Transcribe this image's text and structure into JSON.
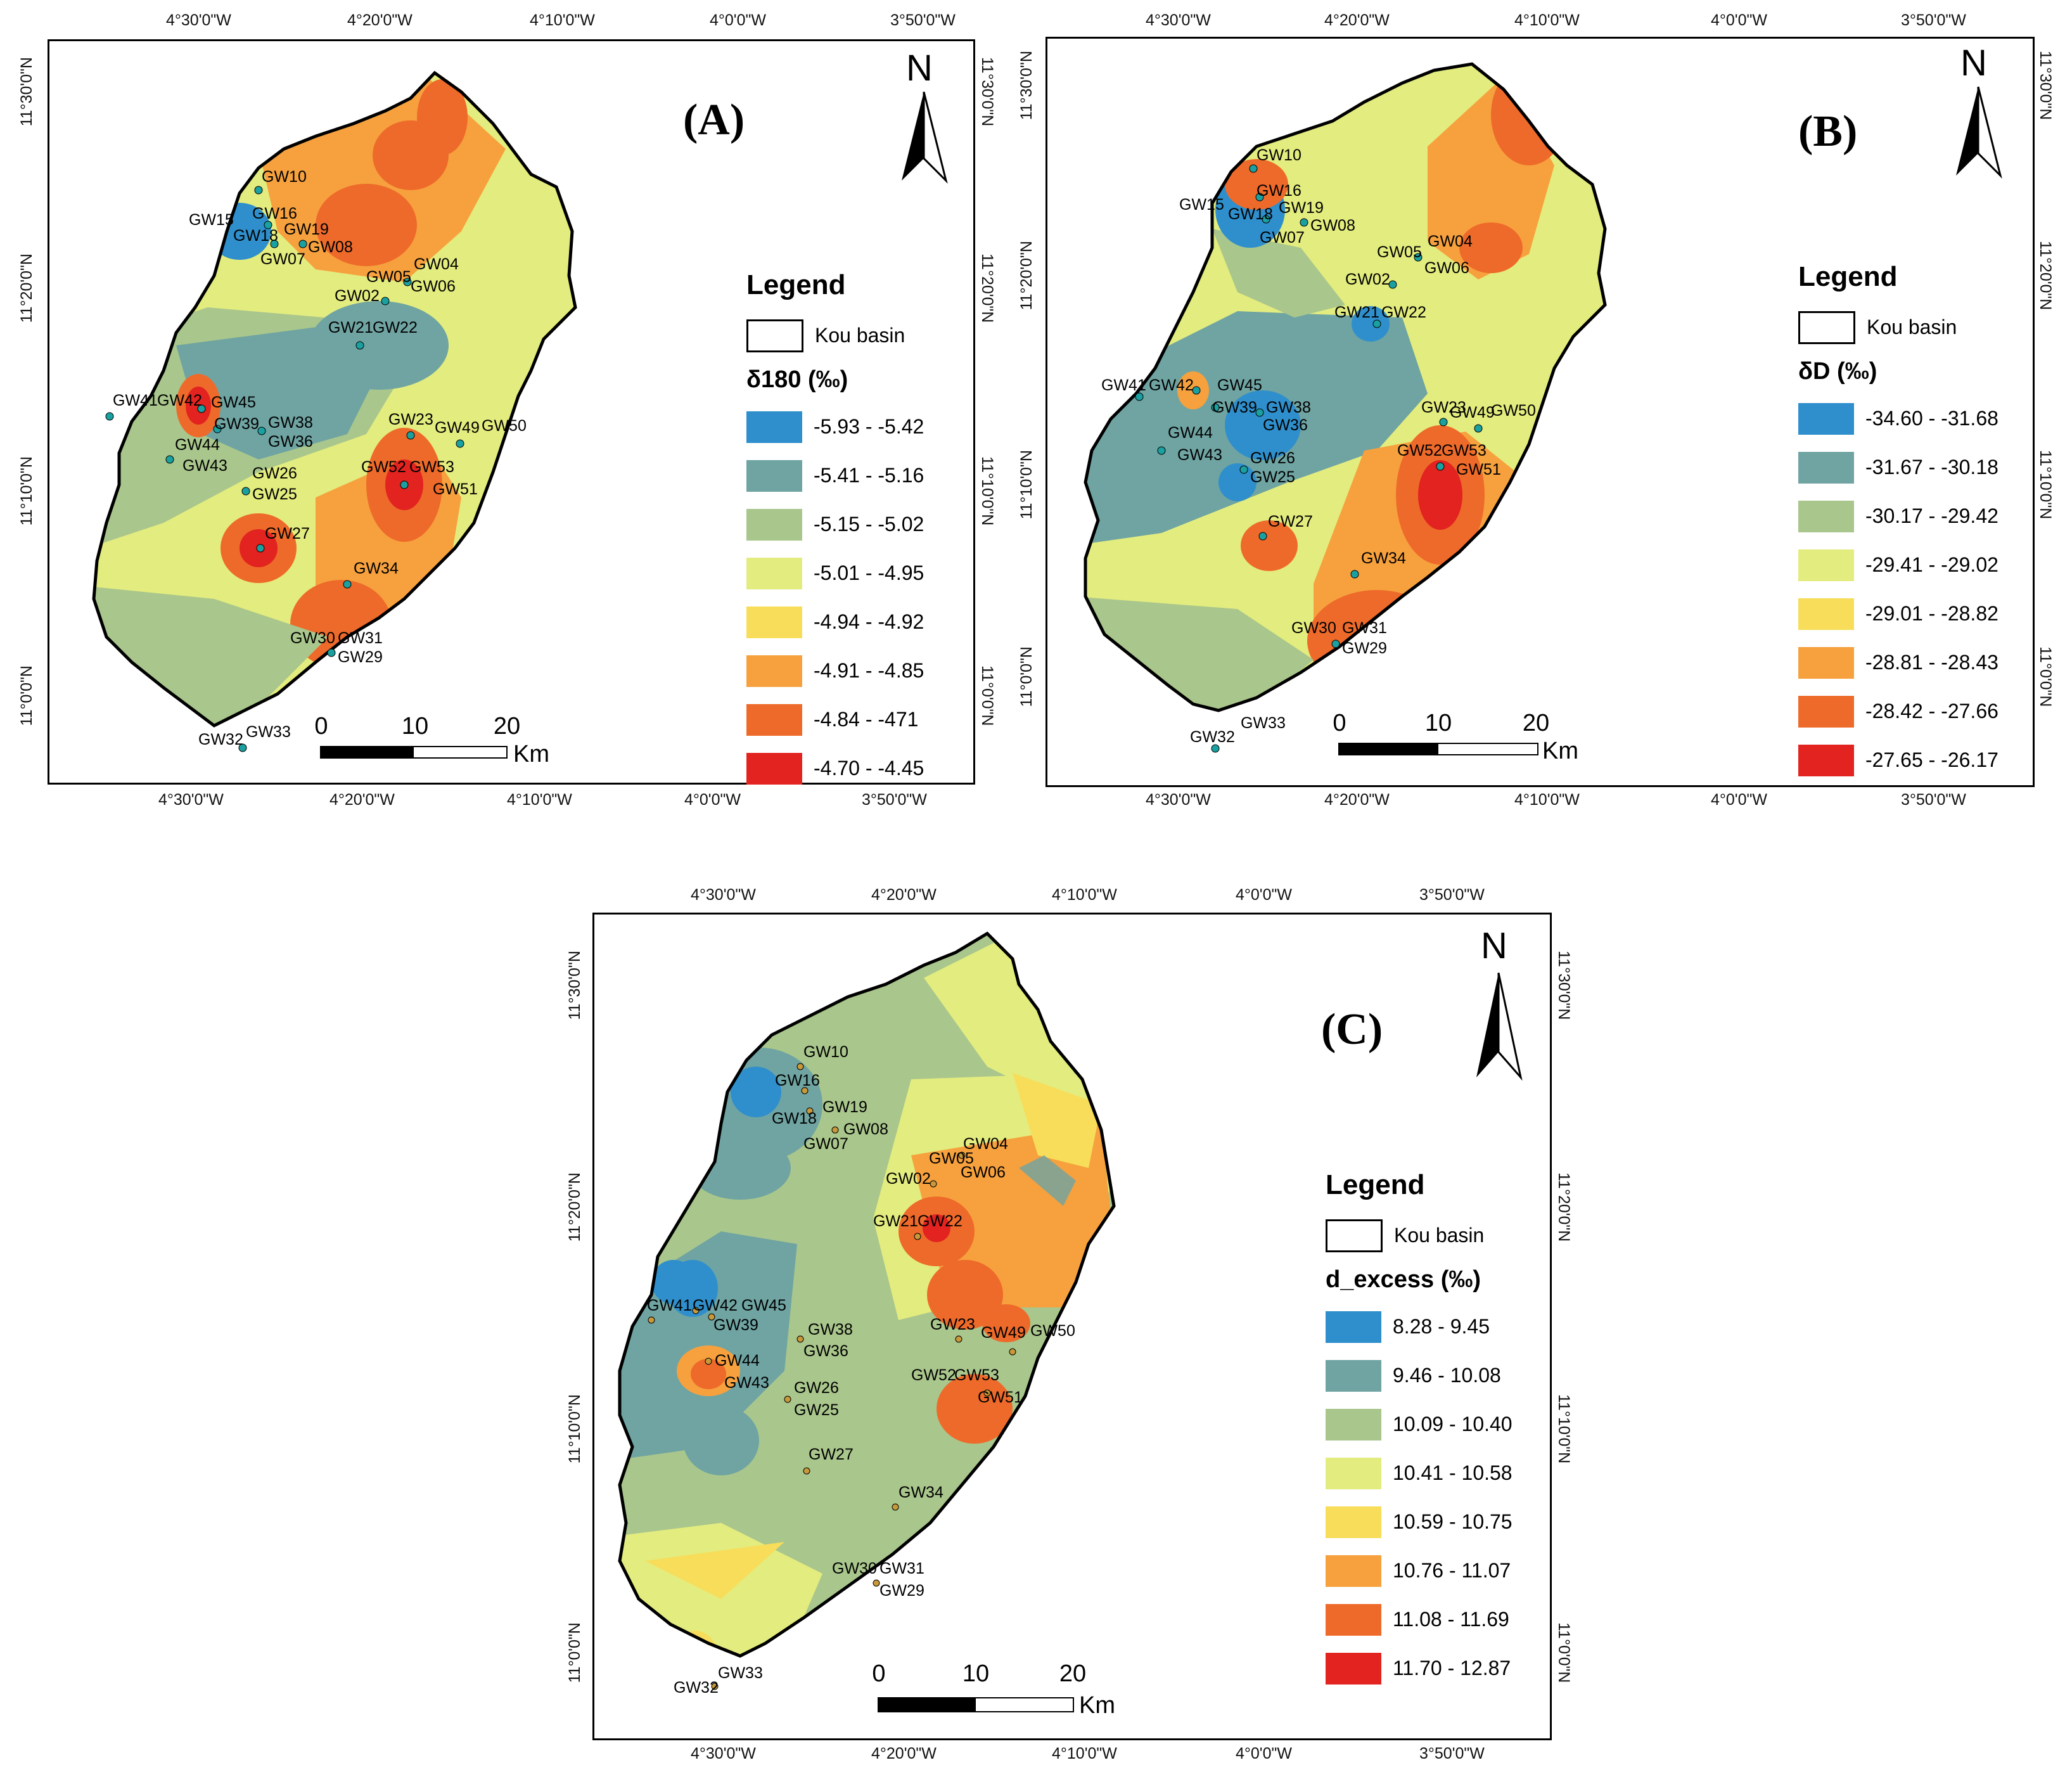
{
  "colors": {
    "blue": "#2f8fcc",
    "teal": "#6fa4a2",
    "sage": "#a9c68c",
    "yellowgreen": "#e3ec7e",
    "yellow": "#f7dd59",
    "orange": "#f6a13e",
    "darkorange": "#ee6a2a",
    "red": "#e2231f",
    "well": "#1aa0a0"
  },
  "axes": {
    "top_lon": [
      "4°30'0\"W",
      "4°20'0\"W",
      "4°10'0\"W",
      "4°0'0\"W",
      "3°50'0\"W"
    ],
    "bottom_lon": [
      "4°30'0\"W",
      "4°20'0\"W",
      "4°10'0\"W",
      "4°0'0\"W",
      "3°50'0\"W"
    ],
    "lat": [
      "11°30'0\"N",
      "11°20'0\"N",
      "11°10'0\"N",
      "11°0'0\"N"
    ]
  },
  "north_label": "N",
  "scale": {
    "ticks": [
      "0",
      "10",
      "20"
    ],
    "unit": "Km"
  },
  "panels": [
    {
      "label": "(A)",
      "legend_title": "Legend",
      "basin_label": "Kou basin",
      "variable": "δ180 (‰)",
      "classes": [
        {
          "range": "-5.93 - -5.42",
          "color": "#2f8fcc"
        },
        {
          "range": "-5.41 - -5.16",
          "color": "#6fa4a2"
        },
        {
          "range": "-5.15 - -5.02",
          "color": "#a9c68c"
        },
        {
          "range": "-5.01 - -4.95",
          "color": "#e3ec7e"
        },
        {
          "range": "-4.94 - -4.92",
          "color": "#f7dd59"
        },
        {
          "range": "-4.91 - -4.85",
          "color": "#f6a13e"
        },
        {
          "range": "-4.84 - -471",
          "color": "#ee6a2a"
        },
        {
          "range": "-4.70 - -4.45",
          "color": "#e2231f"
        }
      ]
    },
    {
      "label": "(B)",
      "legend_title": "Legend",
      "basin_label": "Kou basin",
      "variable": "δD (‰)",
      "classes": [
        {
          "range": "-34.60 - -31.68",
          "color": "#2f8fcc"
        },
        {
          "range": "-31.67 - -30.18",
          "color": "#6fa4a2"
        },
        {
          "range": "-30.17 - -29.42",
          "color": "#a9c68c"
        },
        {
          "range": "-29.41 - -29.02",
          "color": "#e3ec7e"
        },
        {
          "range": "-29.01 - -28.82",
          "color": "#f7dd59"
        },
        {
          "range": "-28.81 - -28.43",
          "color": "#f6a13e"
        },
        {
          "range": "-28.42 - -27.66",
          "color": "#ee6a2a"
        },
        {
          "range": "-27.65 - -26.17",
          "color": "#e2231f"
        }
      ]
    },
    {
      "label": "(C)",
      "legend_title": "Legend",
      "basin_label": "Kou basin",
      "variable": "d_excess (‰)",
      "classes": [
        {
          "range": "8.28 - 9.45",
          "color": "#2f8fcc"
        },
        {
          "range": "9.46 - 10.08",
          "color": "#6fa4a2"
        },
        {
          "range": "10.09 - 10.40",
          "color": "#a9c68c"
        },
        {
          "range": "10.41 - 10.58",
          "color": "#e3ec7e"
        },
        {
          "range": "10.59 - 10.75",
          "color": "#f7dd59"
        },
        {
          "range": "10.76 - 11.07",
          "color": "#f6a13e"
        },
        {
          "range": "11.08 - 11.69",
          "color": "#ee6a2a"
        },
        {
          "range": "11.70 - 12.87",
          "color": "#e2231f"
        }
      ]
    }
  ],
  "wells": [
    "GW10",
    "GW16",
    "GW15",
    "GW18",
    "GW19",
    "GW07",
    "GW08",
    "GW05",
    "GW04",
    "GW02",
    "GW06",
    "GW21",
    "GW22",
    "GW41",
    "GW42",
    "GW45",
    "GW39",
    "GW38",
    "GW36",
    "GW44",
    "GW43",
    "GW26",
    "GW25",
    "GW23",
    "GW49",
    "GW50",
    "GW52",
    "GW53",
    "GW51",
    "GW27",
    "GW34",
    "GW30",
    "GW31",
    "GW29",
    "GW32",
    "GW33"
  ]
}
